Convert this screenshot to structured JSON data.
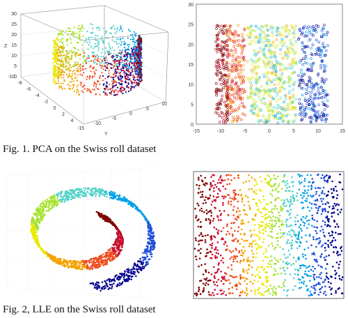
{
  "figures": [
    {
      "caption": "Fig. 1. PCA on the Swiss roll dataset",
      "panels": [
        {
          "kind": "3d-scatter",
          "z_axis_label": "Z",
          "y_axis_label": "Y",
          "z_ticks": [
            "30",
            "25",
            "20",
            "15",
            "10",
            "5",
            "0"
          ],
          "x_ticks": [
            "-15",
            "-10",
            "-5",
            "0",
            "5",
            "10"
          ],
          "y_ticks": [
            "-10",
            "-8",
            "-6",
            "-4",
            "-2",
            "0",
            "2",
            "4"
          ]
        },
        {
          "kind": "2d-scatter",
          "y_ticks": [
            "30",
            "25",
            "20",
            "15",
            "10",
            "5",
            "0"
          ],
          "x_ticks": [
            "-15",
            "-10",
            "-5",
            "0",
            "5",
            "10",
            "15"
          ]
        }
      ]
    },
    {
      "caption": "Fig. 2, LLE on the Swiss roll dataset",
      "panels": [
        {
          "kind": "3d-scatter"
        },
        {
          "kind": "2d-scatter"
        }
      ]
    }
  ],
  "colormap": [
    "#7f0000",
    "#c8102e",
    "#f04a1a",
    "#f5a300",
    "#e8e800",
    "#a6e22e",
    "#4fd0c8",
    "#00a0e8",
    "#1f4fd8",
    "#00008f"
  ]
}
